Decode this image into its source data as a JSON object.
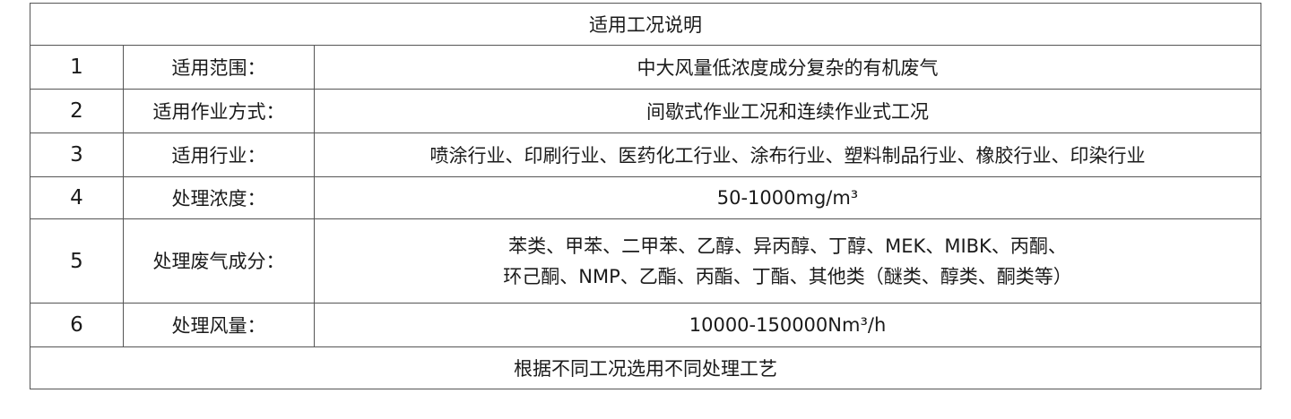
{
  "table": {
    "title": "适用工况说明",
    "rows": [
      {
        "no": "1",
        "label": "适用范围：",
        "value": "中大风量低浓度成分复杂的有机废气"
      },
      {
        "no": "2",
        "label": "适用作业方式：",
        "value": "间歇式作业工况和连续作业式工况"
      },
      {
        "no": "3",
        "label": "适用行业：",
        "value": "喷涂行业、印刷行业、医药化工行业、涂布行业、塑料制品行业、橡胶行业、印染行业"
      },
      {
        "no": "4",
        "label": "处理浓度：",
        "value": "50-1000mg/m³"
      },
      {
        "no": "5",
        "label": "处理废气成分：",
        "value_lines": [
          "苯类、甲苯、二甲苯、乙醇、异丙醇、丁醇、MEK、MIBK、丙酮、",
          "环己酮、NMP、乙酯、丙酯、丁酯、其他类（醚类、醇类、酮类等）"
        ]
      },
      {
        "no": "6",
        "label": "处理风量：",
        "value": "10000-150000Nm³/h"
      }
    ],
    "footer": "根据不同工况选用不同处理工艺"
  }
}
